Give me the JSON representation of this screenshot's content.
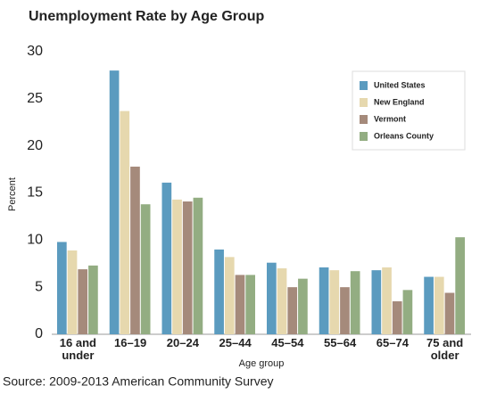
{
  "chart_data": {
    "type": "bar",
    "title": "Unemployment Rate by Age Group",
    "x_label": "Age group",
    "y_label": "Percent",
    "source": "Source: 2009-2013 American Community Survey",
    "categories": [
      "16 and under",
      "16–19",
      "20–24",
      "25–44",
      "45–54",
      "55–64",
      "65–74",
      "75 and older"
    ],
    "series": [
      {
        "name": "United States",
        "color": "#5b9bbf",
        "values": [
          9.8,
          28.0,
          16.1,
          9.0,
          7.6,
          7.1,
          6.8,
          6.1
        ]
      },
      {
        "name": "New England",
        "color": "#e6d8ae",
        "values": [
          8.9,
          23.7,
          14.3,
          8.2,
          7.0,
          6.8,
          7.1,
          6.1
        ]
      },
      {
        "name": "Vermont",
        "color": "#a58a7b",
        "values": [
          6.9,
          17.8,
          14.1,
          6.3,
          5.0,
          5.0,
          3.5,
          4.4
        ]
      },
      {
        "name": "Orleans County",
        "color": "#93ad82",
        "values": [
          7.3,
          13.8,
          14.5,
          6.3,
          5.9,
          6.7,
          4.7,
          10.3
        ]
      }
    ],
    "ylim": [
      0,
      30
    ],
    "yticks": [
      0,
      5,
      10,
      15,
      20,
      25,
      30
    ],
    "grid": false,
    "legend": "top-right"
  }
}
